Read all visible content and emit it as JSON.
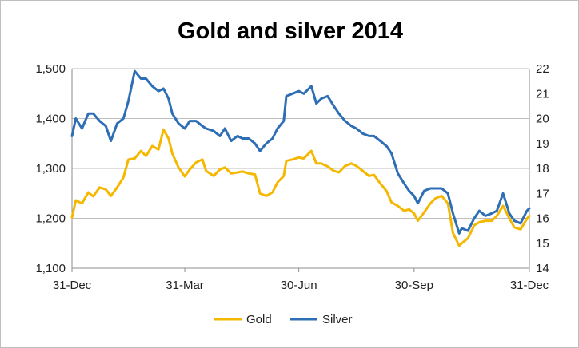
{
  "chart_data": {
    "type": "line",
    "title": "Gold and silver 2014",
    "x_tick_labels": [
      "31-Dec",
      "31-Mar",
      "30-Jun",
      "30-Sep",
      "31-Dec"
    ],
    "x_tick_days": [
      0,
      90,
      181,
      273,
      365
    ],
    "y_left": {
      "range": [
        1100,
        1500
      ],
      "ticks": [
        1100,
        1200,
        1300,
        1400,
        1500
      ],
      "tick_labels": [
        "1,100",
        "1,200",
        "1,300",
        "1,400",
        "1,500"
      ]
    },
    "y_right": {
      "range": [
        14,
        22
      ],
      "ticks": [
        14,
        15,
        16,
        17,
        18,
        19,
        20,
        21,
        22
      ],
      "tick_labels": [
        "14",
        "15",
        "16",
        "17",
        "18",
        "19",
        "20",
        "21",
        "22"
      ]
    },
    "grid": true,
    "legend_position": "bottom",
    "series": [
      {
        "name": "Gold",
        "axis": "left",
        "color": "#F5B800",
        "points": [
          [
            "2013-12-31",
            1202
          ],
          [
            "2014-01-03",
            1236
          ],
          [
            "2014-01-08",
            1230
          ],
          [
            "2014-01-13",
            1252
          ],
          [
            "2014-01-17",
            1244
          ],
          [
            "2014-01-22",
            1262
          ],
          [
            "2014-01-27",
            1258
          ],
          [
            "2014-01-31",
            1245
          ],
          [
            "2014-02-05",
            1262
          ],
          [
            "2014-02-10",
            1282
          ],
          [
            "2014-02-14",
            1318
          ],
          [
            "2014-02-19",
            1320
          ],
          [
            "2014-02-24",
            1335
          ],
          [
            "2014-02-28",
            1325
          ],
          [
            "2014-03-05",
            1345
          ],
          [
            "2014-03-10",
            1338
          ],
          [
            "2014-03-14",
            1378
          ],
          [
            "2014-03-18",
            1360
          ],
          [
            "2014-03-21",
            1330
          ],
          [
            "2014-03-26",
            1302
          ],
          [
            "2014-03-31",
            1284
          ],
          [
            "2014-04-04",
            1298
          ],
          [
            "2014-04-09",
            1312
          ],
          [
            "2014-04-14",
            1318
          ],
          [
            "2014-04-17",
            1295
          ],
          [
            "2014-04-23",
            1285
          ],
          [
            "2014-04-28",
            1298
          ],
          [
            "2014-05-02",
            1302
          ],
          [
            "2014-05-07",
            1290
          ],
          [
            "2014-05-12",
            1292
          ],
          [
            "2014-05-16",
            1294
          ],
          [
            "2014-05-21",
            1290
          ],
          [
            "2014-05-26",
            1288
          ],
          [
            "2014-05-30",
            1250
          ],
          [
            "2014-06-04",
            1245
          ],
          [
            "2014-06-09",
            1252
          ],
          [
            "2014-06-13",
            1272
          ],
          [
            "2014-06-18",
            1285
          ],
          [
            "2014-06-20",
            1315
          ],
          [
            "2014-06-25",
            1318
          ],
          [
            "2014-06-30",
            1322
          ],
          [
            "2014-07-04",
            1320
          ],
          [
            "2014-07-10",
            1335
          ],
          [
            "2014-07-14",
            1310
          ],
          [
            "2014-07-18",
            1310
          ],
          [
            "2014-07-23",
            1304
          ],
          [
            "2014-07-28",
            1295
          ],
          [
            "2014-08-01",
            1292
          ],
          [
            "2014-08-06",
            1305
          ],
          [
            "2014-08-11",
            1310
          ],
          [
            "2014-08-15",
            1305
          ],
          [
            "2014-08-20",
            1295
          ],
          [
            "2014-08-25",
            1285
          ],
          [
            "2014-08-29",
            1287
          ],
          [
            "2014-09-03",
            1270
          ],
          [
            "2014-09-08",
            1255
          ],
          [
            "2014-09-12",
            1232
          ],
          [
            "2014-09-17",
            1225
          ],
          [
            "2014-09-22",
            1215
          ],
          [
            "2014-09-26",
            1218
          ],
          [
            "2014-09-30",
            1210
          ],
          [
            "2014-10-03",
            1195
          ],
          [
            "2014-10-08",
            1212
          ],
          [
            "2014-10-13",
            1230
          ],
          [
            "2014-10-17",
            1240
          ],
          [
            "2014-10-22",
            1245
          ],
          [
            "2014-10-27",
            1230
          ],
          [
            "2014-10-31",
            1171
          ],
          [
            "2014-11-05",
            1145
          ],
          [
            "2014-11-07",
            1150
          ],
          [
            "2014-11-12",
            1160
          ],
          [
            "2014-11-17",
            1186
          ],
          [
            "2014-11-21",
            1192
          ],
          [
            "2014-11-26",
            1195
          ],
          [
            "2014-12-01",
            1195
          ],
          [
            "2014-12-05",
            1205
          ],
          [
            "2014-12-10",
            1225
          ],
          [
            "2014-12-15",
            1200
          ],
          [
            "2014-12-19",
            1182
          ],
          [
            "2014-12-24",
            1178
          ],
          [
            "2014-12-29",
            1199
          ],
          [
            "2014-12-31",
            1205
          ]
        ]
      },
      {
        "name": "Silver",
        "axis": "right",
        "color": "#2E6EB5",
        "points": [
          [
            "2013-12-31",
            19.3
          ],
          [
            "2014-01-03",
            20.0
          ],
          [
            "2014-01-08",
            19.6
          ],
          [
            "2014-01-13",
            20.2
          ],
          [
            "2014-01-17",
            20.2
          ],
          [
            "2014-01-22",
            19.9
          ],
          [
            "2014-01-27",
            19.7
          ],
          [
            "2014-01-31",
            19.1
          ],
          [
            "2014-02-05",
            19.8
          ],
          [
            "2014-02-10",
            20.0
          ],
          [
            "2014-02-14",
            20.7
          ],
          [
            "2014-02-19",
            21.9
          ],
          [
            "2014-02-24",
            21.6
          ],
          [
            "2014-02-28",
            21.6
          ],
          [
            "2014-03-05",
            21.3
          ],
          [
            "2014-03-10",
            21.1
          ],
          [
            "2014-03-14",
            21.2
          ],
          [
            "2014-03-18",
            20.8
          ],
          [
            "2014-03-21",
            20.2
          ],
          [
            "2014-03-26",
            19.8
          ],
          [
            "2014-03-31",
            19.6
          ],
          [
            "2014-04-04",
            19.9
          ],
          [
            "2014-04-09",
            19.9
          ],
          [
            "2014-04-14",
            19.7
          ],
          [
            "2014-04-17",
            19.6
          ],
          [
            "2014-04-23",
            19.5
          ],
          [
            "2014-04-28",
            19.3
          ],
          [
            "2014-05-02",
            19.6
          ],
          [
            "2014-05-07",
            19.1
          ],
          [
            "2014-05-12",
            19.3
          ],
          [
            "2014-05-16",
            19.2
          ],
          [
            "2014-05-21",
            19.2
          ],
          [
            "2014-05-26",
            19.0
          ],
          [
            "2014-05-30",
            18.7
          ],
          [
            "2014-06-04",
            19.0
          ],
          [
            "2014-06-09",
            19.2
          ],
          [
            "2014-06-13",
            19.6
          ],
          [
            "2014-06-18",
            19.9
          ],
          [
            "2014-06-20",
            20.9
          ],
          [
            "2014-06-25",
            21.0
          ],
          [
            "2014-06-30",
            21.1
          ],
          [
            "2014-07-04",
            21.0
          ],
          [
            "2014-07-10",
            21.3
          ],
          [
            "2014-07-14",
            20.6
          ],
          [
            "2014-07-18",
            20.8
          ],
          [
            "2014-07-23",
            20.9
          ],
          [
            "2014-07-28",
            20.5
          ],
          [
            "2014-08-01",
            20.2
          ],
          [
            "2014-08-06",
            19.9
          ],
          [
            "2014-08-11",
            19.7
          ],
          [
            "2014-08-15",
            19.6
          ],
          [
            "2014-08-20",
            19.4
          ],
          [
            "2014-08-25",
            19.3
          ],
          [
            "2014-08-29",
            19.3
          ],
          [
            "2014-09-03",
            19.1
          ],
          [
            "2014-09-08",
            18.9
          ],
          [
            "2014-09-12",
            18.6
          ],
          [
            "2014-09-17",
            17.8
          ],
          [
            "2014-09-22",
            17.4
          ],
          [
            "2014-09-26",
            17.1
          ],
          [
            "2014-09-30",
            16.9
          ],
          [
            "2014-10-03",
            16.6
          ],
          [
            "2014-10-08",
            17.1
          ],
          [
            "2014-10-13",
            17.2
          ],
          [
            "2014-10-17",
            17.2
          ],
          [
            "2014-10-22",
            17.2
          ],
          [
            "2014-10-27",
            17.0
          ],
          [
            "2014-10-31",
            16.2
          ],
          [
            "2014-11-05",
            15.4
          ],
          [
            "2014-11-07",
            15.6
          ],
          [
            "2014-11-12",
            15.5
          ],
          [
            "2014-11-17",
            16.0
          ],
          [
            "2014-11-21",
            16.3
          ],
          [
            "2014-11-26",
            16.1
          ],
          [
            "2014-12-01",
            16.2
          ],
          [
            "2014-12-05",
            16.3
          ],
          [
            "2014-12-10",
            17.0
          ],
          [
            "2014-12-15",
            16.2
          ],
          [
            "2014-12-19",
            15.9
          ],
          [
            "2014-12-24",
            15.8
          ],
          [
            "2014-12-29",
            16.3
          ],
          [
            "2014-12-31",
            16.4
          ]
        ]
      }
    ]
  }
}
